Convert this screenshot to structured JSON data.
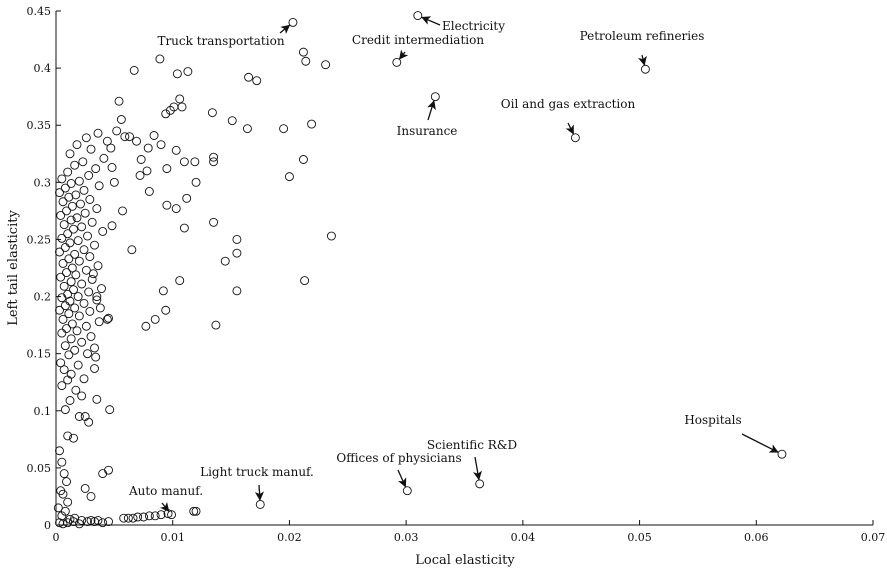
{
  "chart_data": {
    "type": "scatter",
    "xlabel": "Local elasticity",
    "ylabel": "Left tail elasticity",
    "xlim": [
      0,
      0.07
    ],
    "ylim": [
      0,
      0.45
    ],
    "grid": false,
    "x_ticks": [
      "0",
      "0.01",
      "0.02",
      "0.03",
      "0.04",
      "0.05",
      "0.06",
      "0.07"
    ],
    "y_ticks": [
      "0",
      "0.05",
      "0.1",
      "0.15",
      "0.2",
      "0.25",
      "0.3",
      "0.35",
      "0.4",
      "0.45"
    ],
    "labeled_points": [
      {
        "label": "Truck transportation",
        "x": 0.0203,
        "y": 0.44
      },
      {
        "label": "Electricity",
        "x": 0.031,
        "y": 0.446
      },
      {
        "label": "Credit intermediation",
        "x": 0.0292,
        "y": 0.405
      },
      {
        "label": "Petroleum refineries",
        "x": 0.0505,
        "y": 0.399
      },
      {
        "label": "Insurance",
        "x": 0.0325,
        "y": 0.375
      },
      {
        "label": "Oil and gas extraction",
        "x": 0.0445,
        "y": 0.339
      },
      {
        "label": "Hospitals",
        "x": 0.0622,
        "y": 0.062
      },
      {
        "label": "Scientific R&D",
        "x": 0.0363,
        "y": 0.036
      },
      {
        "label": "Offices of physicians",
        "x": 0.0301,
        "y": 0.03
      },
      {
        "label": "Light truck manuf.",
        "x": 0.0175,
        "y": 0.018
      },
      {
        "label": "Auto manuf.",
        "x": 0.0099,
        "y": 0.009
      }
    ],
    "points": [
      [
        0.0003,
        0.065
      ],
      [
        0.0005,
        0.055
      ],
      [
        0.0007,
        0.045
      ],
      [
        0.0009,
        0.038
      ],
      [
        0.0004,
        0.03
      ],
      [
        0.0006,
        0.027
      ],
      [
        0.001,
        0.02
      ],
      [
        0.0002,
        0.015
      ],
      [
        0.0008,
        0.012
      ],
      [
        0.0005,
        0.008
      ],
      [
        0.0012,
        0.005
      ],
      [
        0.0015,
        0.003
      ],
      [
        0.0003,
        0.002
      ],
      [
        0.0006,
        0.001
      ],
      [
        0.001,
        0.002
      ],
      [
        0.002,
        0.001
      ],
      [
        0.0027,
        0.003
      ],
      [
        0.003,
        0.004
      ],
      [
        0.0033,
        0.003
      ],
      [
        0.0036,
        0.004
      ],
      [
        0.004,
        0.002
      ],
      [
        0.0045,
        0.003
      ],
      [
        0.0016,
        0.006
      ],
      [
        0.0022,
        0.004
      ],
      [
        0.0058,
        0.006
      ],
      [
        0.0062,
        0.006
      ],
      [
        0.0066,
        0.006
      ],
      [
        0.007,
        0.007
      ],
      [
        0.0075,
        0.007
      ],
      [
        0.008,
        0.008
      ],
      [
        0.0085,
        0.008
      ],
      [
        0.009,
        0.009
      ],
      [
        0.0096,
        0.01
      ],
      [
        0.0118,
        0.012
      ],
      [
        0.012,
        0.012
      ],
      [
        0.0025,
        0.032
      ],
      [
        0.003,
        0.025
      ],
      [
        0.004,
        0.045
      ],
      [
        0.0045,
        0.048
      ],
      [
        0.0015,
        0.076
      ],
      [
        0.001,
        0.078
      ],
      [
        0.0028,
        0.09
      ],
      [
        0.0025,
        0.095
      ],
      [
        0.002,
        0.095
      ],
      [
        0.0046,
        0.101
      ],
      [
        0.0008,
        0.101
      ],
      [
        0.0012,
        0.109
      ],
      [
        0.0035,
        0.11
      ],
      [
        0.0022,
        0.113
      ],
      [
        0.0017,
        0.118
      ],
      [
        0.0005,
        0.122
      ],
      [
        0.001,
        0.127
      ],
      [
        0.0024,
        0.128
      ],
      [
        0.0013,
        0.132
      ],
      [
        0.0007,
        0.136
      ],
      [
        0.0033,
        0.137
      ],
      [
        0.0019,
        0.14
      ],
      [
        0.0004,
        0.142
      ],
      [
        0.0034,
        0.147
      ],
      [
        0.0011,
        0.149
      ],
      [
        0.0027,
        0.15
      ],
      [
        0.0016,
        0.153
      ],
      [
        0.0033,
        0.155
      ],
      [
        0.0008,
        0.157
      ],
      [
        0.0022,
        0.16
      ],
      [
        0.0013,
        0.163
      ],
      [
        0.003,
        0.165
      ],
      [
        0.0005,
        0.168
      ],
      [
        0.0018,
        0.17
      ],
      [
        0.0009,
        0.172
      ],
      [
        0.0026,
        0.174
      ],
      [
        0.0014,
        0.176
      ],
      [
        0.0037,
        0.178
      ],
      [
        0.0006,
        0.18
      ],
      [
        0.0045,
        0.181
      ],
      [
        0.002,
        0.183
      ],
      [
        0.0011,
        0.185
      ],
      [
        0.0029,
        0.187
      ],
      [
        0.0003,
        0.188
      ],
      [
        0.0016,
        0.19
      ],
      [
        0.0008,
        0.192
      ],
      [
        0.0024,
        0.194
      ],
      [
        0.0012,
        0.196
      ],
      [
        0.0035,
        0.197
      ],
      [
        0.0005,
        0.199
      ],
      [
        0.0019,
        0.2
      ],
      [
        0.001,
        0.202
      ],
      [
        0.0028,
        0.204
      ],
      [
        0.0015,
        0.206
      ],
      [
        0.0039,
        0.207
      ],
      [
        0.0007,
        0.209
      ],
      [
        0.0022,
        0.211
      ],
      [
        0.0013,
        0.213
      ],
      [
        0.0031,
        0.215
      ],
      [
        0.0004,
        0.217
      ],
      [
        0.0017,
        0.219
      ],
      [
        0.0009,
        0.221
      ],
      [
        0.0026,
        0.223
      ],
      [
        0.0014,
        0.225
      ],
      [
        0.0036,
        0.227
      ],
      [
        0.0006,
        0.229
      ],
      [
        0.002,
        0.231
      ],
      [
        0.0011,
        0.233
      ],
      [
        0.0029,
        0.235
      ],
      [
        0.0016,
        0.237
      ],
      [
        0.0003,
        0.239
      ],
      [
        0.0024,
        0.241
      ],
      [
        0.0008,
        0.243
      ],
      [
        0.0033,
        0.245
      ],
      [
        0.0012,
        0.247
      ],
      [
        0.0019,
        0.249
      ],
      [
        0.0005,
        0.251
      ],
      [
        0.0027,
        0.253
      ],
      [
        0.001,
        0.255
      ],
      [
        0.004,
        0.257
      ],
      [
        0.0015,
        0.259
      ],
      [
        0.0022,
        0.261
      ],
      [
        0.0007,
        0.263
      ],
      [
        0.0031,
        0.265
      ],
      [
        0.0013,
        0.267
      ],
      [
        0.0018,
        0.269
      ],
      [
        0.0004,
        0.271
      ],
      [
        0.0025,
        0.273
      ],
      [
        0.0009,
        0.275
      ],
      [
        0.0035,
        0.277
      ],
      [
        0.0014,
        0.279
      ],
      [
        0.0021,
        0.281
      ],
      [
        0.0006,
        0.283
      ],
      [
        0.0029,
        0.285
      ],
      [
        0.0011,
        0.287
      ],
      [
        0.0017,
        0.289
      ],
      [
        0.0003,
        0.291
      ],
      [
        0.0024,
        0.293
      ],
      [
        0.0008,
        0.295
      ],
      [
        0.0037,
        0.297
      ],
      [
        0.0013,
        0.299
      ],
      [
        0.002,
        0.301
      ],
      [
        0.0005,
        0.303
      ],
      [
        0.0028,
        0.306
      ],
      [
        0.001,
        0.309
      ],
      [
        0.0034,
        0.312
      ],
      [
        0.0016,
        0.315
      ],
      [
        0.0023,
        0.318
      ],
      [
        0.0041,
        0.321
      ],
      [
        0.0012,
        0.325
      ],
      [
        0.003,
        0.329
      ],
      [
        0.0018,
        0.333
      ],
      [
        0.0044,
        0.336
      ],
      [
        0.0026,
        0.339
      ],
      [
        0.0036,
        0.343
      ],
      [
        0.0048,
        0.313
      ],
      [
        0.0047,
        0.33
      ],
      [
        0.0052,
        0.345
      ],
      [
        0.0056,
        0.355
      ],
      [
        0.0054,
        0.371
      ],
      [
        0.0067,
        0.398
      ],
      [
        0.0059,
        0.34
      ],
      [
        0.0063,
        0.34
      ],
      [
        0.0069,
        0.336
      ],
      [
        0.0073,
        0.32
      ],
      [
        0.005,
        0.3
      ],
      [
        0.0072,
        0.306
      ],
      [
        0.0078,
        0.31
      ],
      [
        0.008,
        0.292
      ],
      [
        0.0057,
        0.275
      ],
      [
        0.0048,
        0.262
      ],
      [
        0.0065,
        0.241
      ],
      [
        0.0079,
        0.33
      ],
      [
        0.0084,
        0.341
      ],
      [
        0.009,
        0.333
      ],
      [
        0.0089,
        0.408
      ],
      [
        0.0094,
        0.36
      ],
      [
        0.0098,
        0.363
      ],
      [
        0.0101,
        0.366
      ],
      [
        0.0106,
        0.373
      ],
      [
        0.0108,
        0.366
      ],
      [
        0.0104,
        0.395
      ],
      [
        0.0113,
        0.397
      ],
      [
        0.0095,
        0.312
      ],
      [
        0.0103,
        0.328
      ],
      [
        0.011,
        0.318
      ],
      [
        0.0095,
        0.28
      ],
      [
        0.0103,
        0.277
      ],
      [
        0.011,
        0.26
      ],
      [
        0.0112,
        0.286
      ],
      [
        0.012,
        0.3
      ],
      [
        0.0119,
        0.318
      ],
      [
        0.0135,
        0.322
      ],
      [
        0.0135,
        0.318
      ],
      [
        0.0134,
        0.361
      ],
      [
        0.0151,
        0.354
      ],
      [
        0.0164,
        0.347
      ],
      [
        0.0165,
        0.392
      ],
      [
        0.0172,
        0.389
      ],
      [
        0.0195,
        0.347
      ],
      [
        0.02,
        0.305
      ],
      [
        0.0212,
        0.32
      ],
      [
        0.0219,
        0.351
      ],
      [
        0.0212,
        0.414
      ],
      [
        0.0214,
        0.406
      ],
      [
        0.0231,
        0.403
      ],
      [
        0.0236,
        0.253
      ],
      [
        0.0213,
        0.214
      ],
      [
        0.0155,
        0.25
      ],
      [
        0.0155,
        0.238
      ],
      [
        0.0145,
        0.231
      ],
      [
        0.0135,
        0.265
      ],
      [
        0.0155,
        0.205
      ],
      [
        0.0137,
        0.175
      ],
      [
        0.0106,
        0.214
      ],
      [
        0.0092,
        0.205
      ],
      [
        0.0094,
        0.188
      ],
      [
        0.0085,
        0.18
      ],
      [
        0.0077,
        0.174
      ],
      [
        0.0044,
        0.18
      ],
      [
        0.0038,
        0.19
      ],
      [
        0.0035,
        0.2
      ],
      [
        0.0032,
        0.22
      ]
    ]
  }
}
